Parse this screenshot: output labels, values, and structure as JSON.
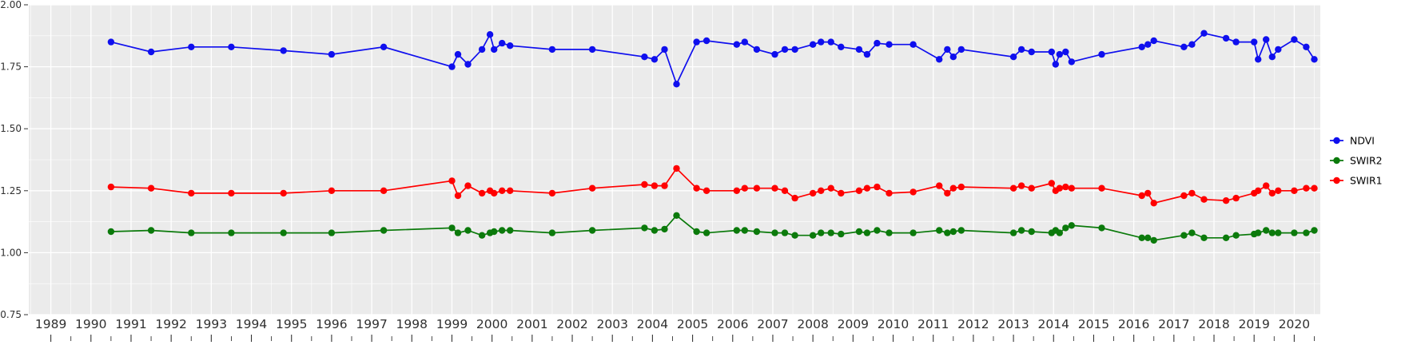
{
  "figure": {
    "background": "#FFFFFF",
    "panel_background": "#EBEBEB",
    "grid_color": "#FFFFFF",
    "axis_text_color": "#303030",
    "tick_color": "#333333"
  },
  "chart_data": {
    "type": "line",
    "title": "",
    "xlabel": "",
    "ylabel": "",
    "grid": true,
    "legend_position": "right",
    "xlim": [
      1988.45,
      2020.65
    ],
    "ylim": [
      0.75,
      2.0
    ],
    "x_ticks": [
      1989,
      1990,
      1991,
      1992,
      1993,
      1994,
      1995,
      1996,
      1997,
      1998,
      1999,
      2000,
      2001,
      2002,
      2003,
      2004,
      2005,
      2006,
      2007,
      2008,
      2009,
      2010,
      2011,
      2012,
      2013,
      2014,
      2015,
      2016,
      2017,
      2018,
      2019,
      2020
    ],
    "y_ticks": [
      0.75,
      1.0,
      1.25,
      1.5,
      1.75,
      2.0
    ],
    "y_tick_labels": [
      "0.75",
      "1.00",
      "1.25",
      "1.50",
      "1.75",
      "2.00"
    ],
    "legend": [
      {
        "label": "NDVI",
        "color": "#0F0FEE"
      },
      {
        "label": "SWIR2",
        "color": "#0B7A0B"
      },
      {
        "label": "SWIR1",
        "color": "#FF0000"
      }
    ],
    "series": [
      {
        "name": "NDVI",
        "color": "#0F0FEE",
        "points": [
          [
            1990.5,
            1.85
          ],
          [
            1991.5,
            1.81
          ],
          [
            1992.5,
            1.83
          ],
          [
            1993.5,
            1.83
          ],
          [
            1994.8,
            1.815
          ],
          [
            1996.0,
            1.8
          ],
          [
            1997.3,
            1.83
          ],
          [
            1999.0,
            1.75
          ],
          [
            1999.15,
            1.8
          ],
          [
            1999.4,
            1.76
          ],
          [
            1999.75,
            1.82
          ],
          [
            1999.95,
            1.88
          ],
          [
            2000.05,
            1.82
          ],
          [
            2000.25,
            1.845
          ],
          [
            2000.45,
            1.835
          ],
          [
            2001.5,
            1.82
          ],
          [
            2002.5,
            1.82
          ],
          [
            2003.8,
            1.79
          ],
          [
            2004.05,
            1.78
          ],
          [
            2004.3,
            1.82
          ],
          [
            2004.6,
            1.68
          ],
          [
            2005.1,
            1.85
          ],
          [
            2005.35,
            1.855
          ],
          [
            2006.1,
            1.84
          ],
          [
            2006.3,
            1.85
          ],
          [
            2006.6,
            1.82
          ],
          [
            2007.05,
            1.8
          ],
          [
            2007.3,
            1.82
          ],
          [
            2007.55,
            1.82
          ],
          [
            2008.0,
            1.84
          ],
          [
            2008.2,
            1.85
          ],
          [
            2008.45,
            1.85
          ],
          [
            2008.7,
            1.83
          ],
          [
            2009.15,
            1.82
          ],
          [
            2009.35,
            1.8
          ],
          [
            2009.6,
            1.845
          ],
          [
            2009.9,
            1.84
          ],
          [
            2010.5,
            1.84
          ],
          [
            2011.15,
            1.78
          ],
          [
            2011.35,
            1.82
          ],
          [
            2011.5,
            1.79
          ],
          [
            2011.7,
            1.82
          ],
          [
            2013.0,
            1.79
          ],
          [
            2013.2,
            1.82
          ],
          [
            2013.45,
            1.81
          ],
          [
            2013.95,
            1.81
          ],
          [
            2014.05,
            1.76
          ],
          [
            2014.15,
            1.8
          ],
          [
            2014.3,
            1.81
          ],
          [
            2014.45,
            1.77
          ],
          [
            2015.2,
            1.8
          ],
          [
            2016.2,
            1.83
          ],
          [
            2016.35,
            1.84
          ],
          [
            2016.5,
            1.855
          ],
          [
            2017.25,
            1.83
          ],
          [
            2017.45,
            1.84
          ],
          [
            2017.75,
            1.885
          ],
          [
            2018.3,
            1.865
          ],
          [
            2018.55,
            1.85
          ],
          [
            2019.0,
            1.85
          ],
          [
            2019.1,
            1.78
          ],
          [
            2019.3,
            1.86
          ],
          [
            2019.45,
            1.79
          ],
          [
            2019.6,
            1.82
          ],
          [
            2020.0,
            1.86
          ],
          [
            2020.3,
            1.83
          ],
          [
            2020.5,
            1.78
          ]
        ]
      },
      {
        "name": "SWIR2",
        "color": "#0B7A0B",
        "points": [
          [
            1990.5,
            1.085
          ],
          [
            1991.5,
            1.09
          ],
          [
            1992.5,
            1.08
          ],
          [
            1993.5,
            1.08
          ],
          [
            1994.8,
            1.08
          ],
          [
            1996.0,
            1.08
          ],
          [
            1997.3,
            1.09
          ],
          [
            1999.0,
            1.1
          ],
          [
            1999.15,
            1.08
          ],
          [
            1999.4,
            1.09
          ],
          [
            1999.75,
            1.07
          ],
          [
            1999.95,
            1.08
          ],
          [
            2000.05,
            1.085
          ],
          [
            2000.25,
            1.09
          ],
          [
            2000.45,
            1.09
          ],
          [
            2001.5,
            1.08
          ],
          [
            2002.5,
            1.09
          ],
          [
            2003.8,
            1.1
          ],
          [
            2004.05,
            1.09
          ],
          [
            2004.3,
            1.095
          ],
          [
            2004.6,
            1.15
          ],
          [
            2005.1,
            1.085
          ],
          [
            2005.35,
            1.08
          ],
          [
            2006.1,
            1.09
          ],
          [
            2006.3,
            1.09
          ],
          [
            2006.6,
            1.085
          ],
          [
            2007.05,
            1.08
          ],
          [
            2007.3,
            1.08
          ],
          [
            2007.55,
            1.07
          ],
          [
            2008.0,
            1.07
          ],
          [
            2008.2,
            1.08
          ],
          [
            2008.45,
            1.08
          ],
          [
            2008.7,
            1.075
          ],
          [
            2009.15,
            1.085
          ],
          [
            2009.35,
            1.08
          ],
          [
            2009.6,
            1.09
          ],
          [
            2009.9,
            1.08
          ],
          [
            2010.5,
            1.08
          ],
          [
            2011.15,
            1.09
          ],
          [
            2011.35,
            1.08
          ],
          [
            2011.5,
            1.085
          ],
          [
            2011.7,
            1.09
          ],
          [
            2013.0,
            1.08
          ],
          [
            2013.2,
            1.09
          ],
          [
            2013.45,
            1.085
          ],
          [
            2013.95,
            1.08
          ],
          [
            2014.05,
            1.09
          ],
          [
            2014.15,
            1.08
          ],
          [
            2014.3,
            1.1
          ],
          [
            2014.45,
            1.11
          ],
          [
            2015.2,
            1.1
          ],
          [
            2016.2,
            1.06
          ],
          [
            2016.35,
            1.06
          ],
          [
            2016.5,
            1.05
          ],
          [
            2017.25,
            1.07
          ],
          [
            2017.45,
            1.08
          ],
          [
            2017.75,
            1.06
          ],
          [
            2018.3,
            1.06
          ],
          [
            2018.55,
            1.07
          ],
          [
            2019.0,
            1.075
          ],
          [
            2019.1,
            1.08
          ],
          [
            2019.3,
            1.09
          ],
          [
            2019.45,
            1.08
          ],
          [
            2019.6,
            1.08
          ],
          [
            2020.0,
            1.08
          ],
          [
            2020.3,
            1.08
          ],
          [
            2020.5,
            1.09
          ]
        ]
      },
      {
        "name": "SWIR1",
        "color": "#FF0000",
        "points": [
          [
            1990.5,
            1.265
          ],
          [
            1991.5,
            1.26
          ],
          [
            1992.5,
            1.24
          ],
          [
            1993.5,
            1.24
          ],
          [
            1994.8,
            1.24
          ],
          [
            1996.0,
            1.25
          ],
          [
            1997.3,
            1.25
          ],
          [
            1999.0,
            1.29
          ],
          [
            1999.15,
            1.23
          ],
          [
            1999.4,
            1.27
          ],
          [
            1999.75,
            1.24
          ],
          [
            1999.95,
            1.25
          ],
          [
            2000.05,
            1.24
          ],
          [
            2000.25,
            1.25
          ],
          [
            2000.45,
            1.25
          ],
          [
            2001.5,
            1.24
          ],
          [
            2002.5,
            1.26
          ],
          [
            2003.8,
            1.275
          ],
          [
            2004.05,
            1.27
          ],
          [
            2004.3,
            1.27
          ],
          [
            2004.6,
            1.34
          ],
          [
            2005.1,
            1.26
          ],
          [
            2005.35,
            1.25
          ],
          [
            2006.1,
            1.25
          ],
          [
            2006.3,
            1.26
          ],
          [
            2006.6,
            1.26
          ],
          [
            2007.05,
            1.26
          ],
          [
            2007.3,
            1.25
          ],
          [
            2007.55,
            1.22
          ],
          [
            2008.0,
            1.24
          ],
          [
            2008.2,
            1.25
          ],
          [
            2008.45,
            1.26
          ],
          [
            2008.7,
            1.24
          ],
          [
            2009.15,
            1.25
          ],
          [
            2009.35,
            1.26
          ],
          [
            2009.6,
            1.265
          ],
          [
            2009.9,
            1.24
          ],
          [
            2010.5,
            1.245
          ],
          [
            2011.15,
            1.27
          ],
          [
            2011.35,
            1.24
          ],
          [
            2011.5,
            1.26
          ],
          [
            2011.7,
            1.265
          ],
          [
            2013.0,
            1.26
          ],
          [
            2013.2,
            1.27
          ],
          [
            2013.45,
            1.26
          ],
          [
            2013.95,
            1.28
          ],
          [
            2014.05,
            1.25
          ],
          [
            2014.15,
            1.26
          ],
          [
            2014.3,
            1.265
          ],
          [
            2014.45,
            1.26
          ],
          [
            2015.2,
            1.26
          ],
          [
            2016.2,
            1.23
          ],
          [
            2016.35,
            1.24
          ],
          [
            2016.5,
            1.2
          ],
          [
            2017.25,
            1.23
          ],
          [
            2017.45,
            1.24
          ],
          [
            2017.75,
            1.215
          ],
          [
            2018.3,
            1.21
          ],
          [
            2018.55,
            1.22
          ],
          [
            2019.0,
            1.24
          ],
          [
            2019.1,
            1.25
          ],
          [
            2019.3,
            1.27
          ],
          [
            2019.45,
            1.24
          ],
          [
            2019.6,
            1.25
          ],
          [
            2020.0,
            1.25
          ],
          [
            2020.3,
            1.26
          ],
          [
            2020.5,
            1.26
          ]
        ]
      }
    ]
  }
}
